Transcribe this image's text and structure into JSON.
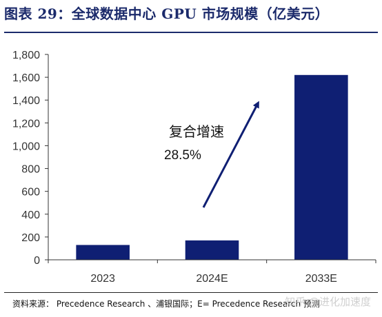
{
  "title": "图表 29：全球数据中心 GPU 市场规模（亿美元）",
  "source": "资料来源：  Precedence Research 、浦银国际；E= Precedence Research  预测",
  "watermark": "知乎 @进化加速度",
  "colors": {
    "bar": "#0f1f73",
    "title": "#1b2a6b",
    "arrow": "#0f1f73"
  },
  "chart_data": {
    "type": "bar",
    "categories": [
      "2023",
      "2024E",
      "2033E"
    ],
    "values": [
      130,
      170,
      1620
    ],
    "ylim": [
      0,
      1800
    ],
    "yticks": [
      "0",
      "200",
      "400",
      "600",
      "800",
      "1,000",
      "1,200",
      "1,400",
      "1,600",
      "1,800"
    ],
    "xlabel": "",
    "ylabel": "",
    "grid": false,
    "annotation": {
      "line1": "复合增速",
      "line2": "28.5%"
    }
  }
}
